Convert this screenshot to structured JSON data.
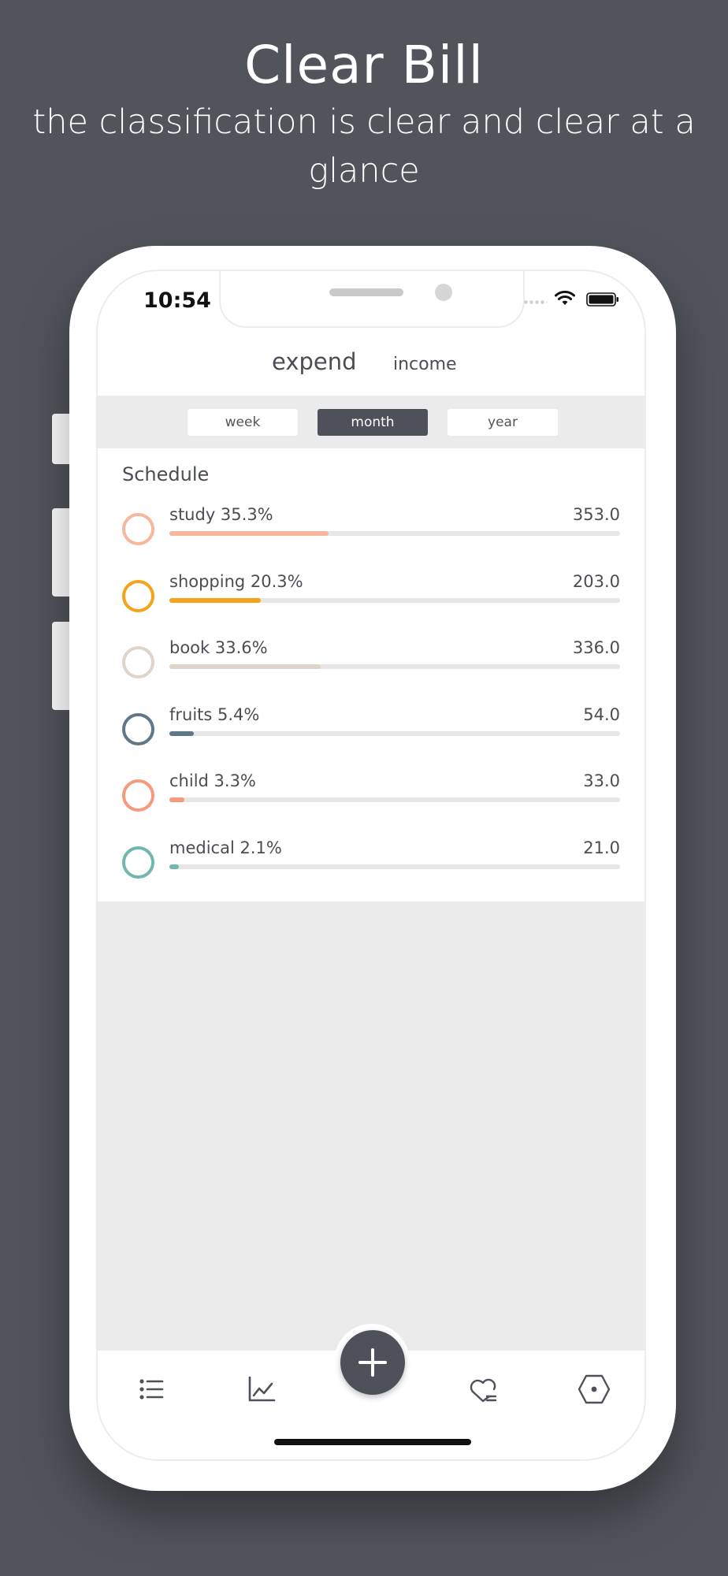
{
  "headline": {
    "title": "Clear Bill",
    "subtitle": "the classification is clear and clear at a glance"
  },
  "status_bar": {
    "time": "10:54"
  },
  "tabs": {
    "expend": "expend",
    "income": "income",
    "selected": "expend"
  },
  "periods": {
    "week": "week",
    "month": "month",
    "year": "year",
    "selected": "month"
  },
  "schedule": {
    "title": "Schedule",
    "items": [
      {
        "label": "study 35.3%",
        "value": "353.0",
        "percent": 35.3,
        "color": "#f6b79c"
      },
      {
        "label": "shopping 20.3%",
        "value": "203.0",
        "percent": 20.3,
        "color": "#f4a31b"
      },
      {
        "label": "book 33.6%",
        "value": "336.0",
        "percent": 33.6,
        "color": "#ddd4cc"
      },
      {
        "label": "fruits 5.4%",
        "value": "54.0",
        "percent": 5.4,
        "color": "#5f7786"
      },
      {
        "label": "child 3.3%",
        "value": "33.0",
        "percent": 3.3,
        "color": "#f79a7b"
      },
      {
        "label": "medical 2.1%",
        "value": "21.0",
        "percent": 2.1,
        "color": "#6fb8ae"
      }
    ]
  },
  "nav": {
    "items": [
      "list-icon",
      "chart-line-icon",
      "add-icon",
      "heart-icon",
      "hexagon-settings-icon"
    ]
  },
  "colors": {
    "background": "#51545b",
    "accent": "#4e5159",
    "panel": "#ebebeb"
  }
}
